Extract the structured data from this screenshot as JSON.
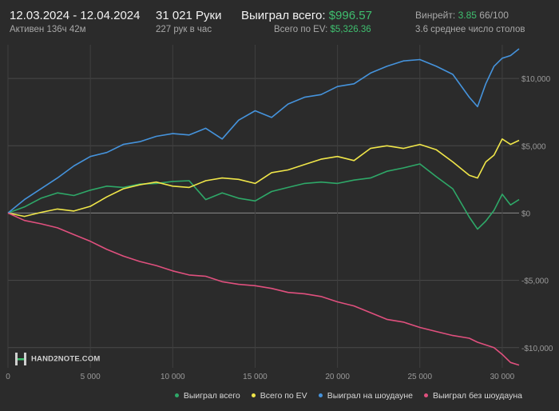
{
  "header": {
    "dates": "12.03.2024 - 12.04.2024",
    "active": "Активен 136ч 42м",
    "hands": "31 021 Руки",
    "rate": "227 рук в час",
    "won_label": "Выиграл всего:",
    "won_value": "$996.57",
    "ev_label": "Всего по EV:",
    "ev_value": "$5,326.36",
    "winrate_label": "Винрейт:",
    "winrate_value": "3.85",
    "winrate_unit": "66/100",
    "tables": "3.6 среднее число столов"
  },
  "logo_text": "HAND2NOTE.COM",
  "chart_data": {
    "type": "line",
    "title": "",
    "xlabel": "",
    "ylabel": "",
    "xlim": [
      0,
      31021
    ],
    "ylim": [
      -11500,
      12500
    ],
    "x_ticks": [
      0,
      5000,
      10000,
      15000,
      20000,
      25000,
      30000
    ],
    "x_tick_labels": [
      "0",
      "5 000",
      "10 000",
      "15 000",
      "20 000",
      "25 000",
      "30 000"
    ],
    "y_ticks": [
      10000,
      5000,
      0,
      -5000,
      -10000
    ],
    "y_tick_labels": [
      "$10,000",
      "$5,000",
      "$0",
      "-$5,000",
      "-$10,000"
    ],
    "grid": true,
    "legend_position": "bottom-right",
    "series": [
      {
        "name": "Выиграл всего",
        "color": "#2ea868",
        "x": [
          0,
          1000,
          2000,
          3000,
          4000,
          5000,
          6000,
          7000,
          8000,
          9000,
          10000,
          11000,
          12000,
          13000,
          14000,
          15000,
          16000,
          17000,
          18000,
          19000,
          20000,
          21000,
          22000,
          23000,
          24000,
          25000,
          26000,
          27000,
          28000,
          28500,
          29000,
          29500,
          30000,
          30500,
          31021
        ],
        "y": [
          0,
          450,
          1100,
          1500,
          1300,
          1700,
          2000,
          1900,
          2150,
          2200,
          2350,
          2400,
          1000,
          1500,
          1100,
          900,
          1600,
          1900,
          2200,
          2300,
          2200,
          2450,
          2600,
          3100,
          3350,
          3650,
          2700,
          1800,
          -300,
          -1200,
          -600,
          200,
          1400,
          600,
          1000
        ]
      },
      {
        "name": "Всего по EV",
        "color": "#f0e649",
        "x": [
          0,
          1000,
          2000,
          3000,
          4000,
          5000,
          6000,
          7000,
          8000,
          9000,
          10000,
          11000,
          12000,
          13000,
          14000,
          15000,
          16000,
          17000,
          18000,
          19000,
          20000,
          21000,
          22000,
          23000,
          24000,
          25000,
          26000,
          27000,
          28000,
          28500,
          29000,
          29500,
          30000,
          30500,
          31021
        ],
        "y": [
          0,
          -250,
          50,
          300,
          150,
          500,
          1200,
          1800,
          2100,
          2300,
          2000,
          1900,
          2400,
          2600,
          2500,
          2200,
          3000,
          3200,
          3600,
          4000,
          4200,
          3900,
          4800,
          5000,
          4800,
          5100,
          4700,
          3800,
          2800,
          2600,
          3800,
          4300,
          5500,
          5100,
          5400
        ]
      },
      {
        "name": "Выиграл на шоудауне",
        "color": "#4593dc",
        "x": [
          0,
          1000,
          2000,
          3000,
          4000,
          5000,
          6000,
          7000,
          8000,
          9000,
          10000,
          11000,
          12000,
          13000,
          14000,
          15000,
          16000,
          17000,
          18000,
          19000,
          20000,
          21000,
          22000,
          23000,
          24000,
          25000,
          26000,
          27000,
          28000,
          28500,
          29000,
          29500,
          30000,
          30500,
          31021
        ],
        "y": [
          0,
          1000,
          1800,
          2600,
          3500,
          4200,
          4500,
          5100,
          5300,
          5700,
          5900,
          5800,
          6300,
          5500,
          6900,
          7600,
          7100,
          8100,
          8600,
          8800,
          9400,
          9600,
          10400,
          10900,
          11300,
          11400,
          10900,
          10300,
          8600,
          7900,
          9600,
          10900,
          11500,
          11700,
          12200
        ]
      },
      {
        "name": "Выиграл без шоудауна",
        "color": "#e0507e",
        "x": [
          0,
          1000,
          2000,
          3000,
          4000,
          5000,
          6000,
          7000,
          8000,
          9000,
          10000,
          11000,
          12000,
          13000,
          14000,
          15000,
          16000,
          17000,
          18000,
          19000,
          20000,
          21000,
          22000,
          23000,
          24000,
          25000,
          26000,
          27000,
          28000,
          28500,
          29000,
          29500,
          30000,
          30500,
          31021
        ],
        "y": [
          0,
          -550,
          -800,
          -1100,
          -1600,
          -2100,
          -2700,
          -3200,
          -3600,
          -3900,
          -4300,
          -4600,
          -4700,
          -5100,
          -5300,
          -5400,
          -5600,
          -5900,
          -6000,
          -6200,
          -6600,
          -6900,
          -7400,
          -7900,
          -8100,
          -8500,
          -8800,
          -9100,
          -9300,
          -9600,
          -9800,
          -10000,
          -10500,
          -11100,
          -11300
        ]
      }
    ]
  }
}
